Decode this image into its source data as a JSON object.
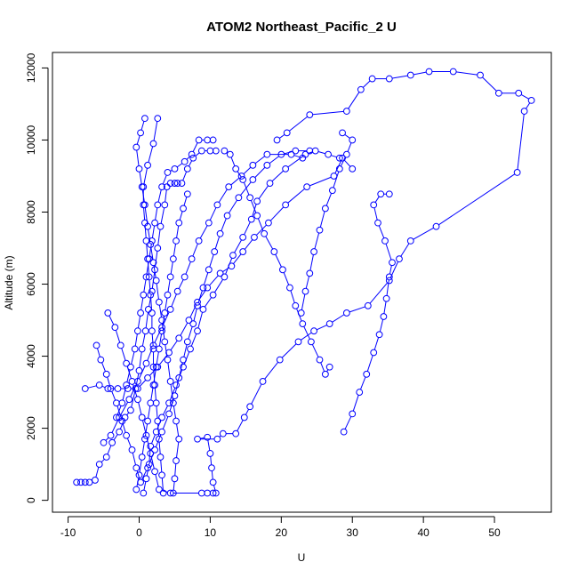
{
  "chart_data": {
    "type": "scatter",
    "title": "ATOM2 Northeast_Pacific_2 U",
    "xlabel": "U",
    "ylabel": "Altitude (m)",
    "xlim": [
      -12.2,
      58.0
    ],
    "ylim": [
      -330,
      12430
    ],
    "x_ticks": [
      -10,
      0,
      10,
      20,
      30,
      40,
      50
    ],
    "y_ticks": [
      0,
      2000,
      4000,
      6000,
      8000,
      10000,
      12000
    ],
    "grid": false,
    "connect_points": true,
    "point_style": "open-circle",
    "colors": {
      "series": "#0000ff",
      "axes": "#000000"
    },
    "series": [
      {
        "points": [
          [
            -8.8,
            500
          ],
          [
            -8.2,
            500
          ],
          [
            -7.6,
            500
          ],
          [
            -7,
            500
          ],
          [
            -6.2,
            560
          ],
          [
            -5.6,
            1000
          ],
          [
            -4.6,
            1200
          ],
          [
            -3.8,
            1600
          ],
          [
            -2.8,
            1900
          ],
          [
            -2,
            2300
          ],
          [
            -1.2,
            2500
          ],
          [
            -0.5,
            3100
          ],
          [
            0,
            3600
          ],
          [
            0.4,
            4200
          ],
          [
            0.9,
            4700
          ],
          [
            1.3,
            5300
          ],
          [
            1.8,
            5800
          ],
          [
            2.2,
            6400
          ],
          [
            2.6,
            7000
          ],
          [
            3,
            7600
          ],
          [
            3.6,
            8200
          ],
          [
            3.9,
            8700
          ],
          [
            4.4,
            8800
          ],
          [
            5,
            8800
          ],
          [
            5.4,
            8800
          ],
          [
            6,
            8800
          ],
          [
            6.8,
            9200
          ],
          [
            7.6,
            9500
          ],
          [
            8.8,
            9700
          ],
          [
            10,
            9700
          ],
          [
            10.8,
            9700
          ]
        ]
      },
      {
        "points": [
          [
            10.8,
            200
          ],
          [
            10.4,
            500
          ],
          [
            10.2,
            900
          ],
          [
            10,
            1300
          ],
          [
            9.6,
            1750
          ],
          [
            8.2,
            1700
          ],
          [
            11,
            1700
          ],
          [
            11.8,
            1850
          ],
          [
            13.6,
            1850
          ],
          [
            14.8,
            2300
          ],
          [
            15.6,
            2600
          ],
          [
            17.4,
            3300
          ],
          [
            19.8,
            3900
          ],
          [
            22.4,
            4400
          ],
          [
            24.6,
            4700
          ],
          [
            26.8,
            4900
          ],
          [
            29.2,
            5200
          ],
          [
            32.2,
            5400
          ],
          [
            35.2,
            6100
          ],
          [
            36.6,
            6700
          ],
          [
            38.2,
            7200
          ],
          [
            41.8,
            7600
          ],
          [
            53.2,
            9100
          ],
          [
            54.2,
            10800
          ],
          [
            55.2,
            11100
          ],
          [
            53.4,
            11300
          ],
          [
            50.6,
            11300
          ],
          [
            48,
            11800
          ],
          [
            44.2,
            11900
          ],
          [
            40.8,
            11900
          ],
          [
            38.2,
            11800
          ],
          [
            35.2,
            11700
          ],
          [
            32.8,
            11700
          ],
          [
            31.2,
            11400
          ],
          [
            29.2,
            10800
          ],
          [
            24,
            10700
          ],
          [
            20.8,
            10200
          ],
          [
            19.4,
            10000
          ]
        ]
      },
      {
        "points": [
          [
            -7.6,
            3100
          ],
          [
            -5.6,
            3200
          ],
          [
            -4.4,
            3100
          ],
          [
            -3,
            3100
          ],
          [
            -1.6,
            3100
          ],
          [
            -0.2,
            3100
          ],
          [
            1.2,
            3400
          ],
          [
            2.6,
            3700
          ],
          [
            4.2,
            4100
          ],
          [
            5.6,
            4500
          ],
          [
            7,
            5000
          ],
          [
            8.2,
            5500
          ],
          [
            9.6,
            5900
          ],
          [
            11.4,
            6300
          ],
          [
            13,
            6500
          ],
          [
            14.6,
            6900
          ],
          [
            16.2,
            7300
          ],
          [
            18.2,
            7700
          ],
          [
            20.6,
            8200
          ],
          [
            23.6,
            8700
          ],
          [
            27.4,
            9000
          ],
          [
            28.6,
            9500
          ],
          [
            30,
            9200
          ]
        ]
      },
      {
        "points": [
          [
            0.6,
            200
          ],
          [
            1,
            600
          ],
          [
            1.4,
            1000
          ],
          [
            1.6,
            1500
          ],
          [
            2.4,
            1900
          ],
          [
            3.2,
            2300
          ],
          [
            4.2,
            2700
          ],
          [
            5.2,
            3200
          ],
          [
            6.2,
            3700
          ],
          [
            7.2,
            4200
          ],
          [
            8.2,
            4700
          ],
          [
            9,
            5300
          ],
          [
            10.4,
            5700
          ],
          [
            12,
            6200
          ],
          [
            13.2,
            6800
          ],
          [
            14.6,
            7300
          ],
          [
            15.8,
            7800
          ],
          [
            16.6,
            8300
          ],
          [
            18.4,
            8800
          ],
          [
            20.6,
            9200
          ],
          [
            23.4,
            9600
          ],
          [
            24.8,
            9700
          ],
          [
            26.6,
            9600
          ],
          [
            28.2,
            9500
          ]
        ]
      },
      {
        "points": [
          [
            4.8,
            200
          ],
          [
            5,
            600
          ],
          [
            5.2,
            1100
          ],
          [
            5.6,
            1700
          ],
          [
            5.2,
            2200
          ],
          [
            4.8,
            2700
          ],
          [
            4.4,
            3300
          ],
          [
            4,
            3900
          ],
          [
            3.6,
            4400
          ],
          [
            3.2,
            5000
          ],
          [
            2.8,
            5500
          ],
          [
            2.4,
            6100
          ],
          [
            2,
            6600
          ],
          [
            1.6,
            7100
          ],
          [
            1.2,
            7600
          ],
          [
            0.8,
            8200
          ],
          [
            0.4,
            8700
          ],
          [
            0,
            9200
          ],
          [
            -0.4,
            9800
          ],
          [
            0.2,
            10200
          ],
          [
            0.8,
            10600
          ]
        ]
      },
      {
        "points": [
          [
            -5,
            1600
          ],
          [
            -4,
            1800
          ],
          [
            -2.8,
            2300
          ],
          [
            -1.4,
            2800
          ],
          [
            -0.2,
            3300
          ],
          [
            1,
            3800
          ],
          [
            2,
            4300
          ],
          [
            3.2,
            4800
          ],
          [
            4.4,
            5300
          ],
          [
            5.4,
            5800
          ],
          [
            6.4,
            6200
          ],
          [
            7.4,
            6700
          ],
          [
            8.4,
            7200
          ],
          [
            9.8,
            7700
          ],
          [
            11,
            8200
          ],
          [
            12.6,
            8700
          ],
          [
            14.4,
            9000
          ],
          [
            16,
            9300
          ],
          [
            18,
            9600
          ],
          [
            21.4,
            9600
          ],
          [
            23,
            9500
          ]
        ]
      },
      {
        "points": [
          [
            -3.2,
            2300
          ],
          [
            -2.4,
            2700
          ],
          [
            -1.8,
            3200
          ],
          [
            -1.2,
            3700
          ],
          [
            -0.6,
            4200
          ],
          [
            -0.2,
            4700
          ],
          [
            0.2,
            5200
          ],
          [
            0.6,
            5700
          ],
          [
            1,
            6200
          ],
          [
            1.4,
            6700
          ],
          [
            1.8,
            7200
          ],
          [
            2.2,
            7700
          ],
          [
            2.6,
            8200
          ],
          [
            3.2,
            8700
          ],
          [
            4,
            9100
          ],
          [
            5,
            9200
          ],
          [
            6.4,
            9400
          ],
          [
            7.4,
            9600
          ],
          [
            8.4,
            10000
          ],
          [
            9.6,
            10000
          ],
          [
            10.4,
            10000
          ]
        ]
      },
      {
        "points": [
          [
            3.4,
            200
          ],
          [
            3.2,
            700
          ],
          [
            3,
            1200
          ],
          [
            2.8,
            1700
          ],
          [
            2.6,
            2200
          ],
          [
            2.4,
            2700
          ],
          [
            2.2,
            3200
          ],
          [
            2,
            3700
          ],
          [
            2,
            4200
          ],
          [
            1.8,
            4700
          ],
          [
            1.8,
            5200
          ],
          [
            1.6,
            5700
          ],
          [
            1.4,
            6200
          ],
          [
            1.2,
            6700
          ],
          [
            1,
            7200
          ],
          [
            0.8,
            7700
          ],
          [
            0.6,
            8200
          ],
          [
            0.6,
            8700
          ],
          [
            1.2,
            9300
          ],
          [
            2,
            9900
          ],
          [
            2.6,
            10600
          ]
        ]
      },
      {
        "points": [
          [
            -0.4,
            300
          ],
          [
            0,
            700
          ],
          [
            0.4,
            1200
          ],
          [
            0.8,
            1700
          ],
          [
            1.2,
            2200
          ],
          [
            1.6,
            2700
          ],
          [
            2,
            3200
          ],
          [
            2.4,
            3700
          ],
          [
            2.8,
            4200
          ],
          [
            3.2,
            4700
          ],
          [
            3.6,
            5200
          ],
          [
            4,
            5700
          ],
          [
            4.4,
            6200
          ],
          [
            4.8,
            6700
          ],
          [
            5.2,
            7200
          ],
          [
            5.6,
            7700
          ],
          [
            6.2,
            8100
          ],
          [
            6.8,
            8500
          ]
        ]
      },
      {
        "points": [
          [
            -6,
            4300
          ],
          [
            -5.4,
            3900
          ],
          [
            -4.6,
            3500
          ],
          [
            -4,
            3100
          ],
          [
            -3.2,
            2700
          ],
          [
            -2.4,
            2200
          ],
          [
            -1.8,
            1800
          ],
          [
            -1,
            1400
          ],
          [
            -0.4,
            900
          ],
          [
            0.2,
            500
          ],
          [
            1.2,
            900
          ],
          [
            2.2,
            1400
          ],
          [
            3.2,
            1900
          ],
          [
            4.2,
            2400
          ],
          [
            5,
            2900
          ],
          [
            5.6,
            3400
          ],
          [
            6.2,
            3900
          ],
          [
            6.8,
            4400
          ],
          [
            7.6,
            4900
          ],
          [
            8.2,
            5400
          ],
          [
            9,
            5900
          ],
          [
            9.8,
            6400
          ],
          [
            10.6,
            6900
          ],
          [
            11.4,
            7400
          ],
          [
            12.4,
            7900
          ],
          [
            14,
            8400
          ],
          [
            16,
            8900
          ],
          [
            18,
            9300
          ],
          [
            20,
            9600
          ],
          [
            22,
            9700
          ],
          [
            24,
            9700
          ]
        ]
      },
      {
        "points": [
          [
            -4.4,
            5200
          ],
          [
            -3.4,
            4800
          ],
          [
            -2.6,
            4300
          ],
          [
            -1.8,
            3800
          ],
          [
            -1,
            3300
          ],
          [
            -0.2,
            2800
          ],
          [
            0.4,
            2300
          ],
          [
            1,
            1800
          ],
          [
            1.6,
            1300
          ],
          [
            2.2,
            800
          ],
          [
            2.8,
            300
          ],
          [
            4.4,
            200
          ],
          [
            8.8,
            200
          ],
          [
            9.6,
            200
          ],
          [
            10.4,
            200
          ]
        ]
      },
      {
        "points": [
          [
            22.8,
            5200
          ],
          [
            23.4,
            5800
          ],
          [
            24,
            6300
          ],
          [
            24.6,
            6900
          ],
          [
            25.4,
            7500
          ],
          [
            26.2,
            8100
          ],
          [
            27.2,
            8600
          ],
          [
            28.2,
            9200
          ],
          [
            29.2,
            9600
          ],
          [
            30,
            10000
          ],
          [
            28.6,
            10200
          ]
        ]
      },
      {
        "points": [
          [
            28.8,
            1900
          ],
          [
            30,
            2400
          ],
          [
            31,
            3000
          ],
          [
            32,
            3500
          ],
          [
            33,
            4100
          ],
          [
            33.8,
            4600
          ],
          [
            34.4,
            5100
          ],
          [
            34.8,
            5600
          ],
          [
            35.2,
            6200
          ],
          [
            35.6,
            6600
          ],
          [
            34.6,
            7200
          ],
          [
            33.6,
            7700
          ],
          [
            33,
            8200
          ],
          [
            34,
            8500
          ],
          [
            35.2,
            8500
          ]
        ]
      },
      {
        "points": [
          [
            26.8,
            3700
          ],
          [
            26.2,
            3500
          ],
          [
            25.4,
            3900
          ],
          [
            24.2,
            4400
          ],
          [
            23,
            4900
          ],
          [
            22,
            5400
          ],
          [
            21.2,
            5900
          ],
          [
            20.2,
            6400
          ],
          [
            19,
            6900
          ],
          [
            17.6,
            7400
          ],
          [
            16.6,
            7900
          ],
          [
            15.6,
            8400
          ],
          [
            14.6,
            8900
          ],
          [
            13.6,
            9200
          ],
          [
            12.8,
            9600
          ],
          [
            12,
            9700
          ]
        ]
      }
    ]
  }
}
